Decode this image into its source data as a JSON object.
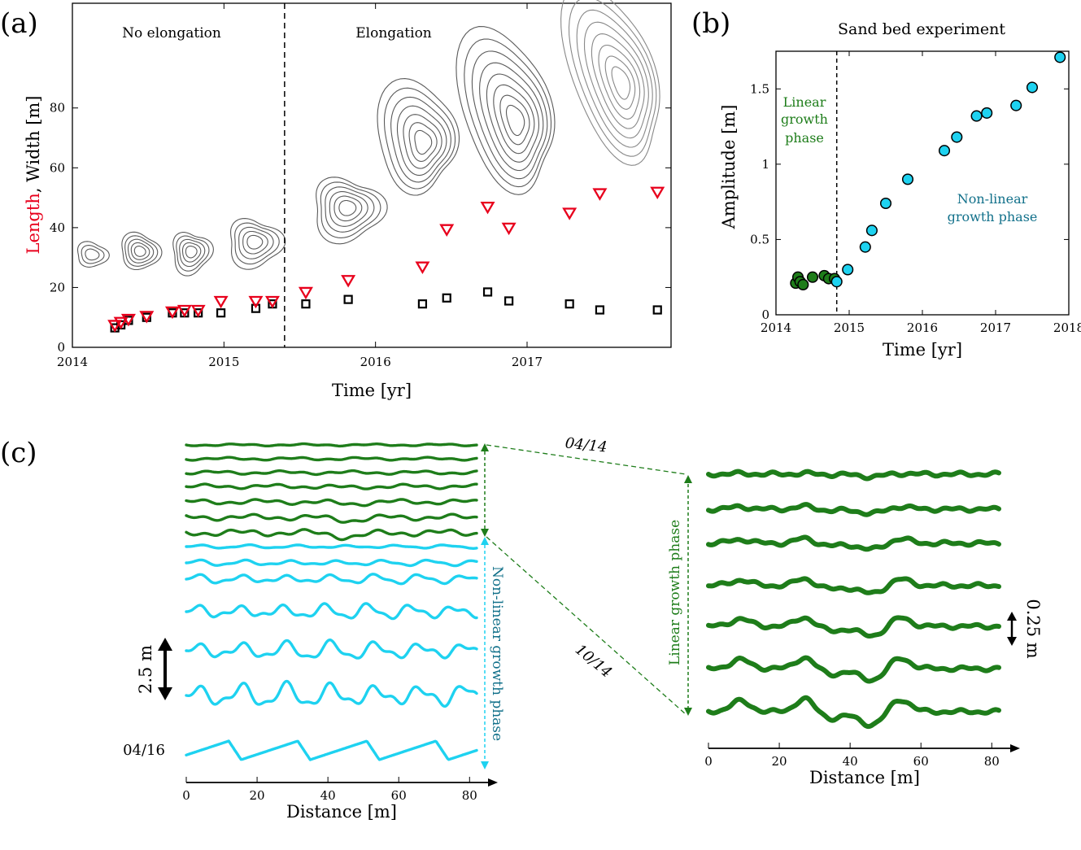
{
  "colors": {
    "red": "#e8001c",
    "green": "#1e7d1a",
    "cyan": "#1ed2f0",
    "dark_cyan": "#11708a",
    "contour": "#5a5a5a"
  },
  "panel_a": {
    "label": "(a)",
    "region_left": "No elongation",
    "region_right": "Elongation",
    "ylabel_part1": "Length",
    "ylabel_part2": ", Width [m]",
    "xlabel": "Time [yr]"
  },
  "panel_b": {
    "label": "(b)",
    "title": "Sand bed experiment",
    "ylabel": "Amplitude [m]",
    "xlabel": "Time [yr]",
    "annot_linear_1": "Linear",
    "annot_linear_2": "growth",
    "annot_linear_3": "phase",
    "annot_nonlinear_1": "Non-linear",
    "annot_nonlinear_2": "growth phase"
  },
  "panel_c": {
    "label": "(c)",
    "xlabel_left": "Distance [m]",
    "xlabel_right": "Distance [m]",
    "date_top": "04/14",
    "date_mid": "10/14",
    "date_bottom": "04/16",
    "scale_left": "2.5 m",
    "scale_right": "0.25 m",
    "phase_nonlinear": "Non-linear growth phase",
    "phase_linear": "Linear growth phase"
  },
  "chart_data": [
    {
      "type": "scatter",
      "panel": "a",
      "xlim": [
        2014,
        2017.95
      ],
      "ylim": [
        0,
        115
      ],
      "xticks": [
        2014,
        2015,
        2016,
        2017
      ],
      "yticks": [
        0,
        20,
        40,
        60,
        80
      ],
      "divider_x": 2015.4,
      "series": [
        {
          "name": "Length",
          "marker": "triangle-down",
          "x": [
            2014.28,
            2014.32,
            2014.37,
            2014.49,
            2014.66,
            2014.74,
            2014.83,
            2014.98,
            2015.21,
            2015.32,
            2015.54,
            2015.82,
            2016.31,
            2016.47,
            2016.74,
            2016.88,
            2017.28,
            2017.48,
            2017.86
          ],
          "y": [
            7.5,
            8.5,
            9.5,
            10.5,
            12,
            12.5,
            12.5,
            15.5,
            15.5,
            15.5,
            18.5,
            22.5,
            27,
            39.5,
            47,
            40,
            45,
            51.5,
            52
          ]
        },
        {
          "name": "Width",
          "marker": "square",
          "x": [
            2014.28,
            2014.32,
            2014.37,
            2014.49,
            2014.66,
            2014.74,
            2014.83,
            2014.98,
            2015.21,
            2015.32,
            2015.54,
            2015.82,
            2016.31,
            2016.47,
            2016.74,
            2016.88,
            2017.28,
            2017.48,
            2017.86
          ],
          "y": [
            6.5,
            7.5,
            9,
            10,
            11.5,
            11.5,
            11.5,
            11.5,
            13,
            14.5,
            14.5,
            16,
            14.5,
            16.5,
            18.5,
            15.5,
            14.5,
            12.5,
            12.5
          ]
        }
      ]
    },
    {
      "type": "scatter",
      "panel": "b",
      "title": "Sand bed experiment",
      "xlabel": "Time [yr]",
      "ylabel": "Amplitude [m]",
      "xlim": [
        2014,
        2018
      ],
      "ylim": [
        0,
        1.75
      ],
      "xticks": [
        2014,
        2015,
        2016,
        2017,
        2018
      ],
      "yticks": [
        0,
        0.5,
        1,
        1.5
      ],
      "divider_x": 2014.83,
      "series": [
        {
          "phase": "linear",
          "x": [
            2014.27,
            2014.3,
            2014.33,
            2014.37,
            2014.5,
            2014.66,
            2014.72,
            2014.8
          ],
          "y": [
            0.21,
            0.25,
            0.22,
            0.2,
            0.25,
            0.26,
            0.24,
            0.24
          ]
        },
        {
          "phase": "non-linear",
          "x": [
            2014.83,
            2014.98,
            2015.22,
            2015.31,
            2015.5,
            2015.8,
            2016.3,
            2016.47,
            2016.74,
            2016.88,
            2017.28,
            2017.5,
            2017.88
          ],
          "y": [
            0.22,
            0.3,
            0.45,
            0.56,
            0.74,
            0.9,
            1.09,
            1.18,
            1.32,
            1.34,
            1.39,
            1.51,
            1.71
          ]
        }
      ]
    },
    {
      "type": "line",
      "panel": "c-left",
      "xlim": [
        0,
        82
      ],
      "xticks": [
        0,
        20,
        40,
        60,
        80
      ],
      "xlabel": "Distance [m]"
    },
    {
      "type": "line",
      "panel": "c-right",
      "xlim": [
        0,
        82
      ],
      "xticks": [
        0,
        20,
        40,
        60,
        80
      ],
      "xlabel": "Distance [m]"
    }
  ]
}
